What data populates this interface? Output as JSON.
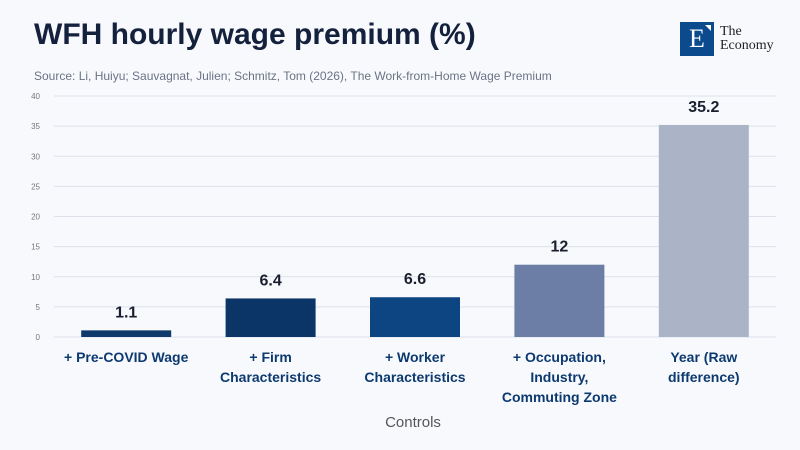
{
  "title": "WFH hourly wage premium (%)",
  "source": "Source: Li, Huiyu; Sauvagnat, Julien; Schmitz, Tom (2026), The Work-from-Home Wage Premium",
  "logo": {
    "letter": "E",
    "line1": "The",
    "line2": "Economy"
  },
  "chart_data": {
    "type": "bar",
    "title": "WFH hourly wage premium (%)",
    "xlabel": "Controls",
    "ylabel": "",
    "ylim": [
      0,
      40
    ],
    "yticks": [
      0,
      5,
      10,
      15,
      20,
      25,
      30,
      35,
      40
    ],
    "grid": true,
    "categories": [
      [
        "+ Pre-COVID Wage"
      ],
      [
        "+ Firm",
        "Characteristics"
      ],
      [
        "+ Worker",
        "Characteristics"
      ],
      [
        "+ Occupation,",
        "Industry,",
        "Commuting Zone"
      ],
      [
        "Year (Raw",
        "difference)"
      ]
    ],
    "values": [
      1.1,
      6.4,
      6.6,
      12,
      35.2
    ],
    "value_labels": [
      "1.1",
      "6.4",
      "6.6",
      "12",
      "35.2"
    ],
    "colors": [
      "#0d3a6b",
      "#0b3566",
      "#0c4582",
      "#6c7ea5",
      "#abb3c7"
    ]
  }
}
